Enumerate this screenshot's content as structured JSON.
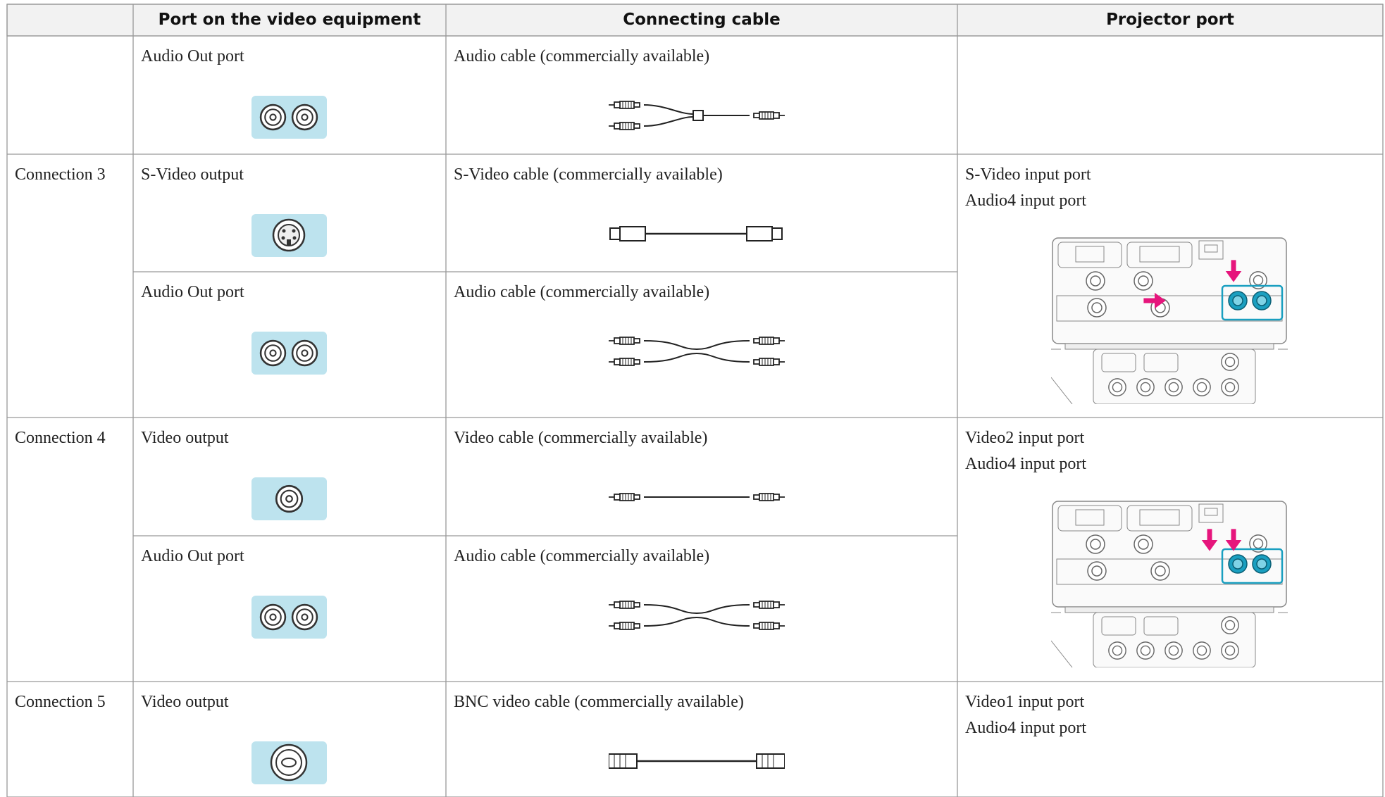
{
  "header": {
    "columns": [
      "Port on the video equipment",
      "Connecting cable",
      "Projector port"
    ]
  },
  "rows": [
    {
      "items": [
        {
          "port": "Audio Out port",
          "cable": "Audio cable (commercially available)"
        }
      ]
    },
    {
      "connection": "Connection 3",
      "items": [
        {
          "port": "S-Video output",
          "cable": "S-Video cable (commercially available)"
        },
        {
          "port": "Audio Out port",
          "cable": "Audio cable (commercially available)"
        }
      ],
      "projector_ports": [
        "S-Video input port",
        "Audio4 input port"
      ]
    },
    {
      "connection": "Connection 4",
      "items": [
        {
          "port": "Video output",
          "cable": "Video cable (commercially available)"
        },
        {
          "port": "Audio Out port",
          "cable": "Audio cable (commercially available)"
        }
      ],
      "projector_ports": [
        "Video2 input port",
        "Audio4 input port"
      ]
    },
    {
      "connection": "Connection 5",
      "items": [
        {
          "port": "Video output",
          "cable": "BNC video cable (commercially available)"
        }
      ],
      "projector_ports": [
        "Video1 input port",
        "Audio4 input port"
      ]
    }
  ]
}
